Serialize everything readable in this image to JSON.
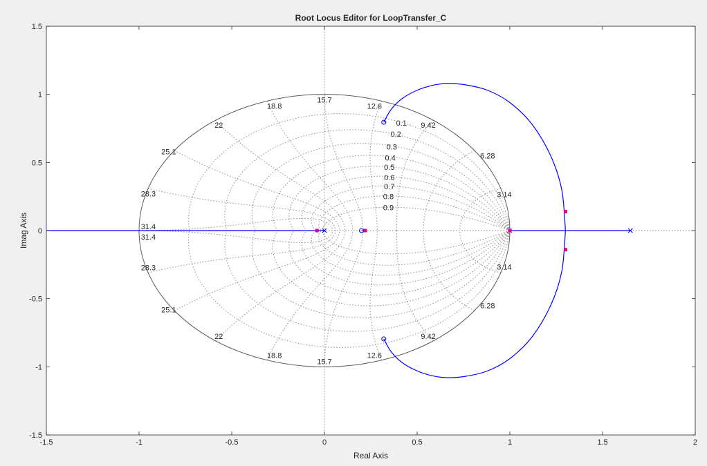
{
  "chart_data": {
    "type": "line",
    "title": "Root Locus Editor for LoopTransfer_C",
    "xlabel": "Real Axis",
    "ylabel": "Imag Axis",
    "xlim": [
      -1.5,
      2
    ],
    "ylim": [
      -1.5,
      1.5
    ],
    "x_ticks": [
      "-1.5",
      "-1",
      "-0.5",
      "0",
      "0.5",
      "1",
      "1.5",
      "2"
    ],
    "y_ticks": [
      "1.5",
      "1",
      "0.5",
      "0",
      "-0.5",
      "-1",
      "-1.5"
    ],
    "x_tick_values": [
      -1.5,
      -1,
      -0.5,
      0,
      0.5,
      1,
      1.5,
      2
    ],
    "y_tick_values": [
      1.5,
      1,
      0.5,
      0,
      -0.5,
      -1,
      -1.5
    ],
    "unit_circle": true,
    "damping_labels": [
      "0.1",
      "0.2",
      "0.3",
      "0.4",
      "0.5",
      "0.6",
      "0.7",
      "0.8",
      "0.9"
    ],
    "damping_values": [
      0.1,
      0.2,
      0.3,
      0.4,
      0.5,
      0.6,
      0.7,
      0.8,
      0.9
    ],
    "natural_freq_labels": [
      "3.14",
      "6.28",
      "9.42",
      "12.6",
      "15.7",
      "18.8",
      "22",
      "25.1",
      "28.3",
      "31.4"
    ],
    "natural_freq_fractions": [
      0.1,
      0.2,
      0.3,
      0.4,
      0.5,
      0.6,
      0.7,
      0.8,
      0.9,
      1.0
    ],
    "poles": [
      [
        0,
        0
      ],
      [
        1,
        0
      ],
      [
        1.65,
        0
      ]
    ],
    "zeros": [
      [
        0.2,
        0
      ],
      [
        0.32,
        0.795
      ],
      [
        0.32,
        -0.795
      ]
    ],
    "closed_loop_poles": [
      [
        -0.04,
        0
      ],
      [
        0.22,
        0
      ],
      [
        1.0,
        0
      ],
      [
        1.3,
        0.14
      ],
      [
        1.3,
        -0.14
      ]
    ],
    "locus_branches": [
      {
        "x": [
          0.32,
          0.36,
          0.42,
          0.5,
          0.58,
          0.66,
          0.76,
          0.88,
          1.0,
          1.12,
          1.22,
          1.28,
          1.3
        ],
        "y": [
          0.795,
          0.89,
          0.97,
          1.03,
          1.065,
          1.08,
          1.07,
          1.03,
          0.94,
          0.78,
          0.55,
          0.3,
          0.0
        ]
      },
      {
        "x": [
          0.32,
          0.36,
          0.42,
          0.5,
          0.58,
          0.66,
          0.76,
          0.88,
          1.0,
          1.12,
          1.22,
          1.28,
          1.3
        ],
        "y": [
          -0.795,
          -0.89,
          -0.97,
          -1.03,
          -1.065,
          -1.08,
          -1.07,
          -1.03,
          -0.94,
          -0.78,
          -0.55,
          -0.3,
          0.0
        ]
      },
      {
        "x": [
          -1.5,
          0.0
        ],
        "y": [
          0,
          0
        ]
      },
      {
        "x": [
          0.2,
          0.22
        ],
        "y": [
          0,
          0
        ]
      },
      {
        "x": [
          1.0,
          1.65
        ],
        "y": [
          0,
          0
        ]
      }
    ],
    "colors": {
      "locus": "#0000ff",
      "closed_loop_pole": "#e6007e",
      "pole_unit": "#d21f3c",
      "grid": "#8c8c8c",
      "circle": "#5a5a5a"
    },
    "grid": true
  }
}
